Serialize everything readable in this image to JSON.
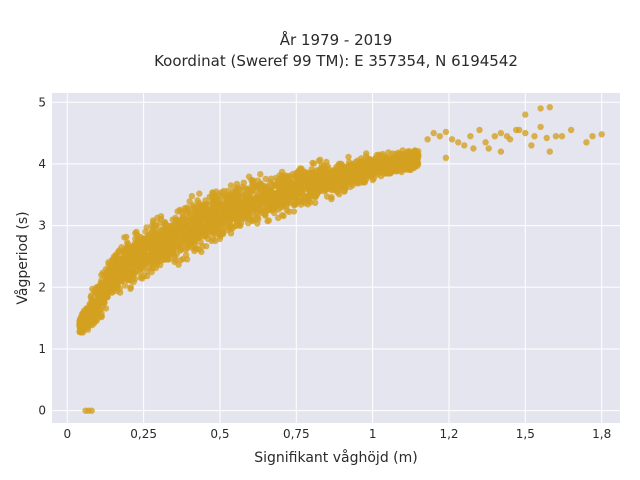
{
  "chart_data": {
    "type": "scatter",
    "title_line1": "År 1979 - 2019",
    "title_line2": "Koordinat (Sweref 99 TM): E 357354, N 6194542",
    "xlabel": "Signifikant våghöjd (m)",
    "ylabel": "Vågperiod (s)",
    "xlim": [
      -0.05,
      1.81
    ],
    "ylim": [
      -0.2,
      5.15
    ],
    "xticks": [
      0,
      0.25,
      0.5,
      0.75,
      1,
      1.25,
      1.5,
      1.75
    ],
    "xtick_labels": [
      "0",
      "0,25",
      "0,5",
      "0,75",
      "1",
      "1,2",
      "1,5",
      "1,8"
    ],
    "yticks": [
      0,
      1,
      2,
      3,
      4,
      5
    ],
    "ytick_labels": [
      "0",
      "1",
      "2",
      "3",
      "4",
      "5"
    ],
    "grid": true,
    "colors": {
      "points": "#d4a020",
      "plot_bg": "#e5e5ef",
      "grid": "#ffffff"
    },
    "series": [
      {
        "band": [
          [
            0.04,
            1.22,
            1.55
          ],
          [
            0.07,
            1.22,
            1.85
          ],
          [
            0.1,
            1.3,
            2.25
          ],
          [
            0.13,
            1.55,
            2.55
          ],
          [
            0.16,
            1.75,
            2.75
          ],
          [
            0.2,
            1.85,
            2.95
          ],
          [
            0.25,
            2.0,
            3.1
          ],
          [
            0.3,
            2.15,
            3.25
          ],
          [
            0.35,
            2.3,
            3.4
          ],
          [
            0.4,
            2.4,
            3.52
          ],
          [
            0.45,
            2.55,
            3.62
          ],
          [
            0.5,
            2.65,
            3.72
          ],
          [
            0.55,
            2.75,
            3.8
          ],
          [
            0.6,
            2.85,
            3.88
          ],
          [
            0.65,
            2.95,
            3.95
          ],
          [
            0.7,
            3.05,
            4.0
          ],
          [
            0.75,
            3.15,
            4.05
          ],
          [
            0.8,
            3.25,
            4.1
          ],
          [
            0.85,
            3.35,
            4.12
          ],
          [
            0.9,
            3.45,
            4.15
          ],
          [
            0.95,
            3.55,
            4.2
          ],
          [
            1.0,
            3.65,
            4.25
          ],
          [
            1.05,
            3.75,
            4.25
          ],
          [
            1.1,
            3.8,
            4.28
          ],
          [
            1.15,
            3.85,
            4.3
          ]
        ],
        "outliers": [
          [
            0.06,
            0.0
          ],
          [
            0.07,
            0.0
          ],
          [
            0.08,
            0.0
          ],
          [
            1.18,
            4.4
          ],
          [
            1.2,
            4.5
          ],
          [
            1.22,
            4.45
          ],
          [
            1.24,
            4.52
          ],
          [
            1.26,
            4.4
          ],
          [
            1.28,
            4.35
          ],
          [
            1.3,
            4.3
          ],
          [
            1.32,
            4.45
          ],
          [
            1.35,
            4.55
          ],
          [
            1.37,
            4.35
          ],
          [
            1.38,
            4.25
          ],
          [
            1.4,
            4.45
          ],
          [
            1.42,
            4.5
          ],
          [
            1.45,
            4.4
          ],
          [
            1.47,
            4.55
          ],
          [
            1.5,
            4.5
          ],
          [
            1.52,
            4.3
          ],
          [
            1.53,
            4.45
          ],
          [
            1.55,
            4.6
          ],
          [
            1.57,
            4.42
          ],
          [
            1.6,
            4.45
          ],
          [
            1.62,
            4.45
          ],
          [
            1.65,
            4.55
          ],
          [
            1.7,
            4.35
          ],
          [
            1.72,
            4.45
          ],
          [
            1.75,
            4.48
          ],
          [
            1.5,
            4.8
          ],
          [
            1.55,
            4.9
          ],
          [
            1.58,
            4.92
          ],
          [
            1.48,
            4.55
          ],
          [
            1.44,
            4.45
          ],
          [
            1.58,
            4.2
          ],
          [
            1.33,
            4.25
          ],
          [
            1.42,
            4.2
          ],
          [
            1.24,
            4.1
          ]
        ]
      }
    ]
  }
}
